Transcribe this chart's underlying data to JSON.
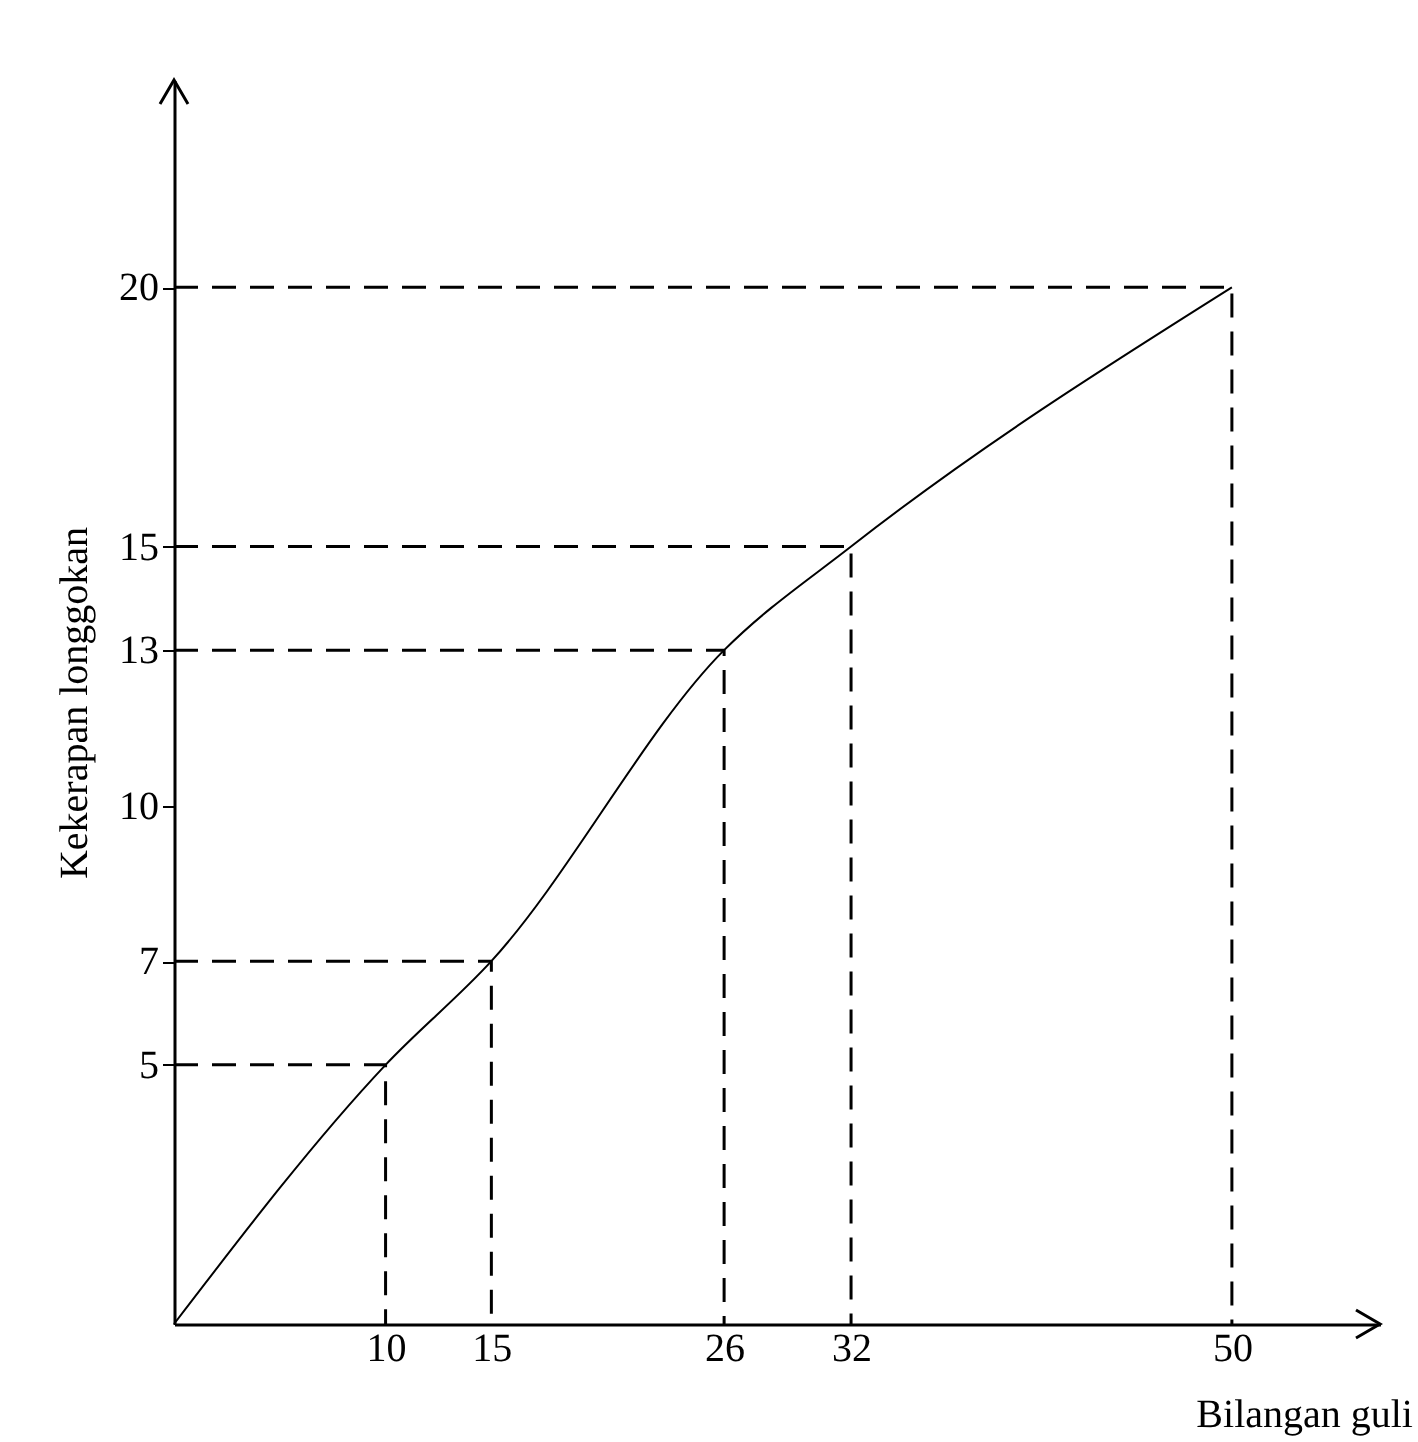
{
  "chart_data": {
    "type": "line",
    "xlabel": "Bilangan guli",
    "ylabel": "Kekerapan longgokan",
    "series": [
      {
        "color": "#000000",
        "x": [
          0,
          10,
          15,
          26,
          32,
          50
        ],
        "values": [
          0,
          5,
          7,
          13,
          15,
          20
        ]
      },
      {
        "color": "#000000",
        "line_style": "dashed",
        "x": [
          0,
          10,
          10
        ],
        "values": [
          5,
          5,
          0
        ]
      },
      {
        "color": "#000000",
        "line_style": "dashed",
        "x": [
          0,
          15,
          15
        ],
        "values": [
          7,
          7,
          0
        ]
      },
      {
        "color": "#000000",
        "line_style": "dashed",
        "x": [
          0,
          26,
          26
        ],
        "values": [
          13,
          13,
          0
        ]
      },
      {
        "color": "#000000",
        "line_style": "dashed",
        "x": [
          0,
          32,
          32
        ],
        "values": [
          15,
          15,
          0
        ]
      },
      {
        "color": "#000000",
        "line_style": "dashed",
        "x": [
          0,
          50,
          50
        ],
        "values": [
          20,
          20,
          0
        ]
      }
    ],
    "xlim": [
      0,
      57
    ],
    "ylim": [
      0,
      24
    ],
    "xticks": [
      10,
      15,
      26,
      32,
      50
    ],
    "yticks": [
      5,
      7,
      10,
      13,
      15,
      20
    ]
  }
}
